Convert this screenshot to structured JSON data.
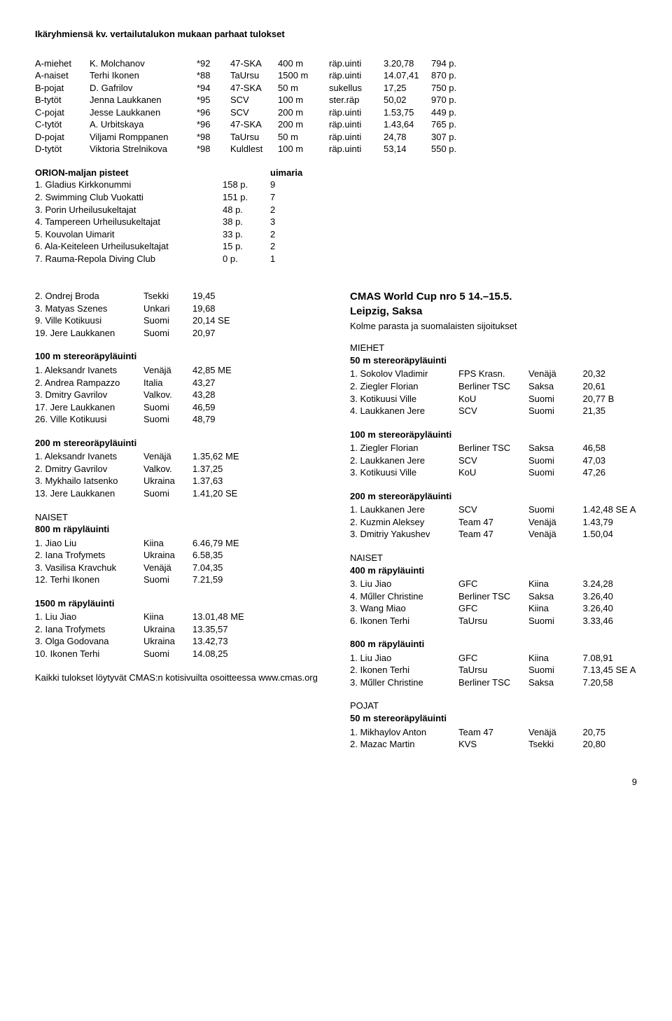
{
  "title": "Ikäryhmiensä kv. vertailutalukon mukaan parhaat tulokset",
  "best": [
    {
      "cat": "A-miehet",
      "name": "K. Molchanov",
      "yr": "*92",
      "club": "47-SKA",
      "dist": "400 m",
      "style": "räp.uinti",
      "time": "3.20,78",
      "pts": "794 p."
    },
    {
      "cat": "A-naiset",
      "name": "Terhi Ikonen",
      "yr": "*88",
      "club": "TaUrsu",
      "dist": "1500 m",
      "style": "räp.uinti",
      "time": "14.07,41",
      "pts": "870 p."
    },
    {
      "cat": "B-pojat",
      "name": "D. Gafrilov",
      "yr": "*94",
      "club": "47-SKA",
      "dist": "50 m",
      "style": "sukellus",
      "time": "17,25",
      "pts": "750 p."
    },
    {
      "cat": "B-tytöt",
      "name": "Jenna Laukkanen",
      "yr": "*95",
      "club": "SCV",
      "dist": "100 m",
      "style": "ster.räp",
      "time": "50,02",
      "pts": "970 p."
    },
    {
      "cat": "C-pojat",
      "name": "Jesse Laukkanen",
      "yr": "*96",
      "club": "SCV",
      "dist": "200 m",
      "style": "räp.uinti",
      "time": "1.53,75",
      "pts": "449 p."
    },
    {
      "cat": "C-tytöt",
      "name": "A. Urbitskaya",
      "yr": "*96",
      "club": "47-SKA",
      "dist": "200 m",
      "style": "räp.uinti",
      "time": "1.43,64",
      "pts": "765 p."
    },
    {
      "cat": "D-pojat",
      "name": "Viljami Romppanen",
      "yr": "*98",
      "club": "TaUrsu",
      "dist": "50 m",
      "style": "räp.uinti",
      "time": "24,78",
      "pts": "307 p."
    },
    {
      "cat": "D-tytöt",
      "name": "Viktoria Strelnikova",
      "yr": "*98",
      "club": "Kuldlest",
      "dist": "100 m",
      "style": "räp.uinti",
      "time": "53,14",
      "pts": "550 p."
    }
  ],
  "orion_title": "ORION-maljan pisteet",
  "orion_swimmers": "uimaria",
  "orion": [
    {
      "n": "1. Gladius Kirkkonummi",
      "p": "158 p.",
      "s": "9"
    },
    {
      "n": "2. Swimming Club Vuokatti",
      "p": "151 p.",
      "s": "7"
    },
    {
      "n": "3. Porin Urheilusukeltajat",
      "p": "48 p.",
      "s": "2"
    },
    {
      "n": "4. Tampereen Urheilusukeltajat",
      "p": "38 p.",
      "s": "3"
    },
    {
      "n": "5. Kouvolan Uimarit",
      "p": "33 p.",
      "s": "2"
    },
    {
      "n": "6. Ala-Keiteleen Urheilusukeltajat",
      "p": "15 p.",
      "s": "2"
    },
    {
      "n": "7. Rauma-Repola Diving Club",
      "p": "0 p.",
      "s": "1"
    }
  ],
  "left": {
    "top": [
      {
        "n": "2. Ondrej Broda",
        "c": "Tsekki",
        "t": "19,45"
      },
      {
        "n": "3. Matyas Szenes",
        "c": "Unkari",
        "t": "19,68"
      },
      {
        "n": "9. Ville Kotikuusi",
        "c": "Suomi",
        "t": "20,14 SE"
      },
      {
        "n": "19. Jere Laukkanen",
        "c": "Suomi",
        "t": "20,97"
      }
    ],
    "e100": {
      "title": "100 m stereoräpyläuinti",
      "rows": [
        {
          "n": "1. Aleksandr Ivanets",
          "c": "Venäjä",
          "t": "42,85 ME"
        },
        {
          "n": "2. Andrea Rampazzo",
          "c": "Italia",
          "t": "43,27"
        },
        {
          "n": "3. Dmitry Gavrilov",
          "c": "Valkov.",
          "t": "43,28"
        },
        {
          "n": "17. Jere Laukkanen",
          "c": "Suomi",
          "t": "46,59"
        },
        {
          "n": "26. Ville Kotikuusi",
          "c": "Suomi",
          "t": "48,79"
        }
      ]
    },
    "e200": {
      "title": "200 m stereoräpyläuinti",
      "rows": [
        {
          "n": "1. Aleksandr Ivanets",
          "c": "Venäjä",
          "t": "1.35,62 ME"
        },
        {
          "n": "2. Dmitry Gavrilov",
          "c": "Valkov.",
          "t": "1.37,25"
        },
        {
          "n": "3. Mykhailo Iatsenko",
          "c": "Ukraina",
          "t": "1.37,63"
        },
        {
          "n": "13. Jere Laukkanen",
          "c": "Suomi",
          "t": "1.41,20 SE"
        }
      ]
    },
    "naiset": "NAISET",
    "e800": {
      "title": "800 m räpyläuinti",
      "rows": [
        {
          "n": "1. Jiao Liu",
          "c": "Kiina",
          "t": "6.46,79  ME"
        },
        {
          "n": "2. Iana Trofymets",
          "c": "Ukraina",
          "t": "6.58,35"
        },
        {
          "n": "3. Vasilisa Kravchuk",
          "c": "Venäjä",
          "t": "7.04,35"
        },
        {
          "n": "12. Terhi Ikonen",
          "c": "Suomi",
          "t": "7.21,59"
        }
      ]
    },
    "e1500": {
      "title": "1500 m räpyläuinti",
      "rows": [
        {
          "n": "1. Liu Jiao",
          "c": "Kiina",
          "t": "13.01,48 ME"
        },
        {
          "n": "2. Iana Trofymets",
          "c": "Ukraina",
          "t": "13.35,57"
        },
        {
          "n": "3. Olga Godovana",
          "c": "Ukraina",
          "t": "13.42,73"
        },
        {
          "n": "10. Ikonen Terhi",
          "c": "Suomi",
          "t": "14.08,25"
        }
      ]
    },
    "footer": "Kaikki tulokset löytyvät CMAS:n kotisivuilta osoitteessa www.cmas.org"
  },
  "right": {
    "title1": "CMAS World Cup nro 5 14.–15.5.",
    "title2": "Leipzig, Saksa",
    "sub": "Kolme parasta ja suomalaisten sijoitukset",
    "miehet": "MIEHET",
    "e50": {
      "title": "50 m stereoräpyläuinti",
      "rows": [
        {
          "n": "1. Sokolov Vladimir",
          "c": "FPS Krasn.",
          "d": "Venäjä",
          "t": "20,32"
        },
        {
          "n": "2. Ziegler Florian",
          "c": "Berliner TSC",
          "d": "Saksa",
          "t": "20,61"
        },
        {
          "n": "3. Kotikuusi Ville",
          "c": "KoU",
          "d": "Suomi",
          "t": "20,77 B"
        },
        {
          "n": "4. Laukkanen Jere",
          "c": "SCV",
          "d": "Suomi",
          "t": "21,35"
        }
      ]
    },
    "e100": {
      "title": "100 m stereoräpyläuinti",
      "rows": [
        {
          "n": "1. Ziegler Florian",
          "c": "Berliner TSC",
          "d": "Saksa",
          "t": "46,58"
        },
        {
          "n": "2. Laukkanen Jere",
          "c": "SCV",
          "d": "Suomi",
          "t": "47,03"
        },
        {
          "n": "3. Kotikuusi Ville",
          "c": "KoU",
          "d": "Suomi",
          "t": "47,26"
        }
      ]
    },
    "e200": {
      "title": "200 m stereoräpyläuinti",
      "rows": [
        {
          "n": "1. Laukkanen Jere",
          "c": "SCV",
          "d": "Suomi",
          "t": "1.42,48 SE A"
        },
        {
          "n": "2. Kuzmin Aleksey",
          "c": "Team 47",
          "d": "Venäjä",
          "t": "1.43,79"
        },
        {
          "n": "3. Dmitriy Yakushev",
          "c": "Team 47",
          "d": "Venäjä",
          "t": "1.50,04"
        }
      ]
    },
    "naiset": "NAISET",
    "e400": {
      "title": "400 m räpyläuinti",
      "rows": [
        {
          "n": "3. Liu Jiao",
          "c": "GFC",
          "d": "Kiina",
          "t": "3.24,28"
        },
        {
          "n": "4. Műller Christine",
          "c": "Berliner TSC",
          "d": "Saksa",
          "t": "3.26,40"
        },
        {
          "n": "3. Wang Miao",
          "c": "GFC",
          "d": "Kiina",
          "t": "3.26,40"
        },
        {
          "n": "6. Ikonen Terhi",
          "c": "TaUrsu",
          "d": "Suomi",
          "t": "3.33,46"
        }
      ]
    },
    "e800": {
      "title": "800 m räpyläuinti",
      "rows": [
        {
          "n": "1. Liu Jiao",
          "c": "GFC",
          "d": "Kiina",
          "t": "7.08,91"
        },
        {
          "n": "2. Ikonen Terhi",
          "c": "TaUrsu",
          "d": "Suomi",
          "t": "7.13,45 SE A"
        },
        {
          "n": "3. Műller Christine",
          "c": "Berliner TSC",
          "d": "Saksa",
          "t": "7.20,58"
        }
      ]
    },
    "pojat": "POJAT",
    "e50p": {
      "title": "50 m stereoräpyläuinti",
      "rows": [
        {
          "n": "1. Mikhaylov Anton",
          "c": "Team 47",
          "d": "Venäjä",
          "t": "20,75"
        },
        {
          "n": "2. Mazac Martin",
          "c": "KVS",
          "d": "Tsekki",
          "t": "20,80"
        }
      ]
    }
  },
  "page": "9"
}
